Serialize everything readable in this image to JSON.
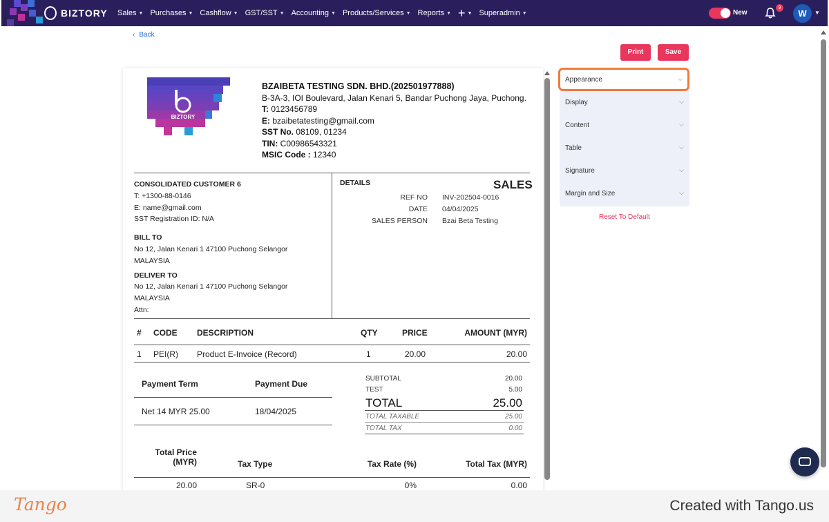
{
  "app": {
    "brand": "BIZTORY",
    "nav": [
      "Sales",
      "Purchases",
      "Cashflow",
      "GST/SST",
      "Accounting",
      "Products/Services",
      "Reports",
      "+",
      "Superadmin"
    ],
    "toggle_label": "New",
    "notification_count": "9",
    "avatar_initial": "W",
    "accent_color": "#e8365d",
    "nav_color": "#2a1f5c"
  },
  "page": {
    "back_label": "Back",
    "print_label": "Print",
    "save_label": "Save"
  },
  "invoice": {
    "company": {
      "name": "BZAIBETA TESTING SDN. BHD.(202501977888)",
      "address": "B-3A-3, IOI Boulevard, Jalan Kenari 5, Bandar Puchong Jaya, Puchong.",
      "t_label": "T:",
      "t_value": "0123456789",
      "e_label": "E:",
      "e_value": "bzaibetatesting@gmail.com",
      "sst_label": "SST No.",
      "sst_value": "08109, 01234",
      "tin_label": "TIN:",
      "tin_value": "C00986543321",
      "msic_label": "MSIC Code :",
      "msic_value": "12340"
    },
    "customer": {
      "name": "CONSOLIDATED CUSTOMER 6",
      "phone": "T: +1300-88-0146",
      "email": "E: name@gmail.com",
      "sst": "SST Registration ID: N/A",
      "bill_to_label": "BILL TO",
      "bill_to_line1": "No 12, Jalan Kenari 1 47100 Puchong Selangor",
      "bill_to_line2": "MALAYSIA",
      "deliver_to_label": "DELIVER TO",
      "deliver_to_line1": "No 12, Jalan Kenari 1 47100 Puchong Selangor",
      "deliver_to_line2": "MALAYSIA",
      "attn": "Attn:"
    },
    "details": {
      "label": "DETAILS",
      "doc_type": "SALES",
      "ref_no_label": "REF NO",
      "ref_no": "INV-202504-0016",
      "date_label": "DATE",
      "date": "04/04/2025",
      "sales_person_label": "SALES PERSON",
      "sales_person": "Bzai Beta Testing"
    },
    "items_table": {
      "headers": [
        "#",
        "CODE",
        "DESCRIPTION",
        "QTY",
        "PRICE",
        "AMOUNT (MYR)"
      ],
      "rows": [
        [
          "1",
          "PEI(R)",
          "Product E-Invoice (Record)",
          "1",
          "20.00",
          "20.00"
        ]
      ]
    },
    "payment": {
      "term_label": "Payment Term",
      "due_label": "Payment Due",
      "term": "Net 14 MYR 25.00",
      "due": "18/04/2025"
    },
    "totals": {
      "subtotal_label": "SUBTOTAL",
      "subtotal": "20.00",
      "test_label": "TEST",
      "test": "5.00",
      "total_label": "TOTAL",
      "total": "25.00",
      "taxable_label": "TOTAL TAXABLE",
      "taxable": "25.00",
      "tax_label": "TOTAL TAX",
      "tax": "0.00"
    },
    "tax_table": {
      "total_price_label_1": "Total Price",
      "total_price_label_2": "(MYR)",
      "tax_type_label": "Tax Type",
      "tax_rate_label": "Tax Rate (%)",
      "total_tax_label": "Total Tax (MYR)",
      "total_price": "20.00",
      "tax_type": "SR-0",
      "tax_rate": "0%",
      "total_tax": "0.00"
    }
  },
  "side_panel": {
    "sections": [
      "Appearance",
      "Display",
      "Content",
      "Table",
      "Signature",
      "Margin and Size"
    ],
    "reset_label": "Reset To Default"
  },
  "footer": {
    "tango": "Tango",
    "created": "Created with Tango.us"
  }
}
